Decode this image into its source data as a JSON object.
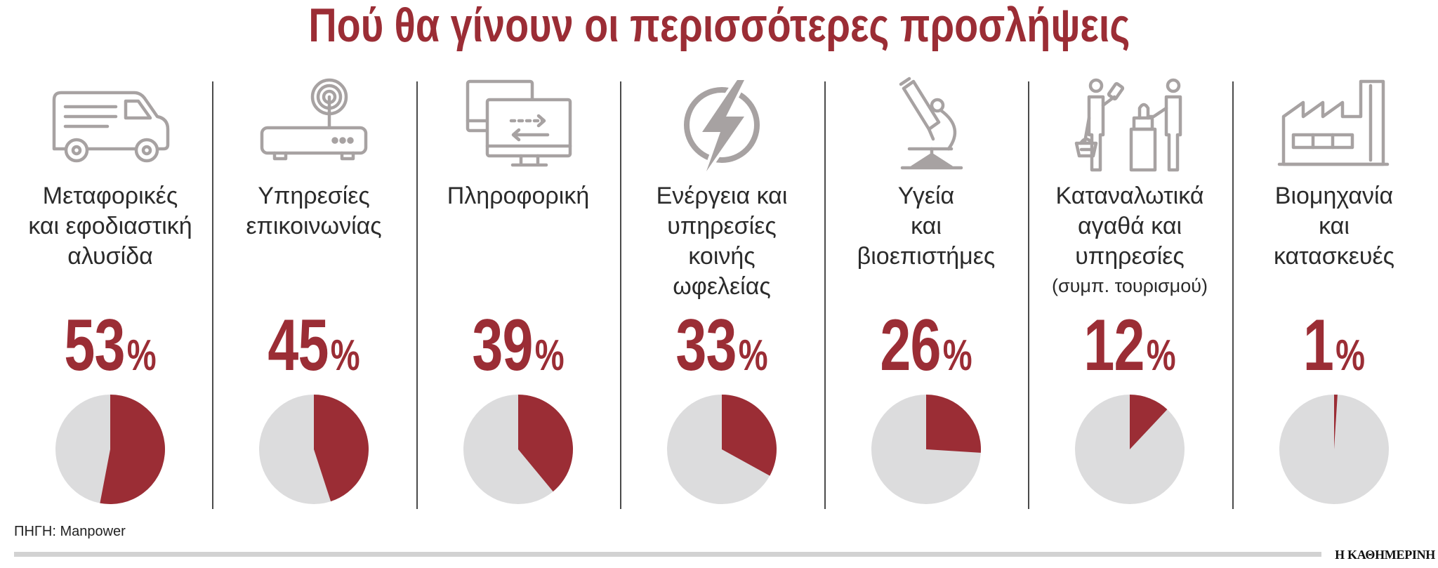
{
  "colors": {
    "accent": "#9b2d35",
    "pie_rest": "#dcdcdd",
    "icon": "#a7a2a2",
    "text": "#2b2b2b",
    "separator": "#4a4a4a"
  },
  "chart_data": {
    "type": "pie",
    "title": "Πού θα γίνουν οι περισσότερες προσλήψεις",
    "categories": [
      "Μεταφορικές\nκαι εφοδιαστική\nαλυσίδα",
      "Υπηρεσίες\nεπικοινωνίας",
      "Πληροφορική",
      "Ενέργεια και\nυπηρεσίες\nκοινής\nωφελείας",
      "Υγεία\nκαι\nβιοεπιστήμες",
      "Καταναλωτικά\nαγαθά και\nυπηρεσίες",
      "Βιομηχανία\nκαι\nκατασκευές"
    ],
    "category_notes": [
      "",
      "",
      "",
      "",
      "",
      "(συμπ. τουρισμού)",
      ""
    ],
    "values": [
      53,
      45,
      39,
      33,
      26,
      12,
      1
    ],
    "unit": "%",
    "icons": [
      "delivery-van-icon",
      "wifi-router-icon",
      "computer-monitors-icon",
      "lightning-bolt-icon",
      "microscope-icon",
      "shoppers-checkout-icon",
      "factory-icon"
    ]
  },
  "source": "ΠΗΓΗ: Manpower",
  "brand": "Η ΚΑΘΗΜΕΡΙΝΗ"
}
